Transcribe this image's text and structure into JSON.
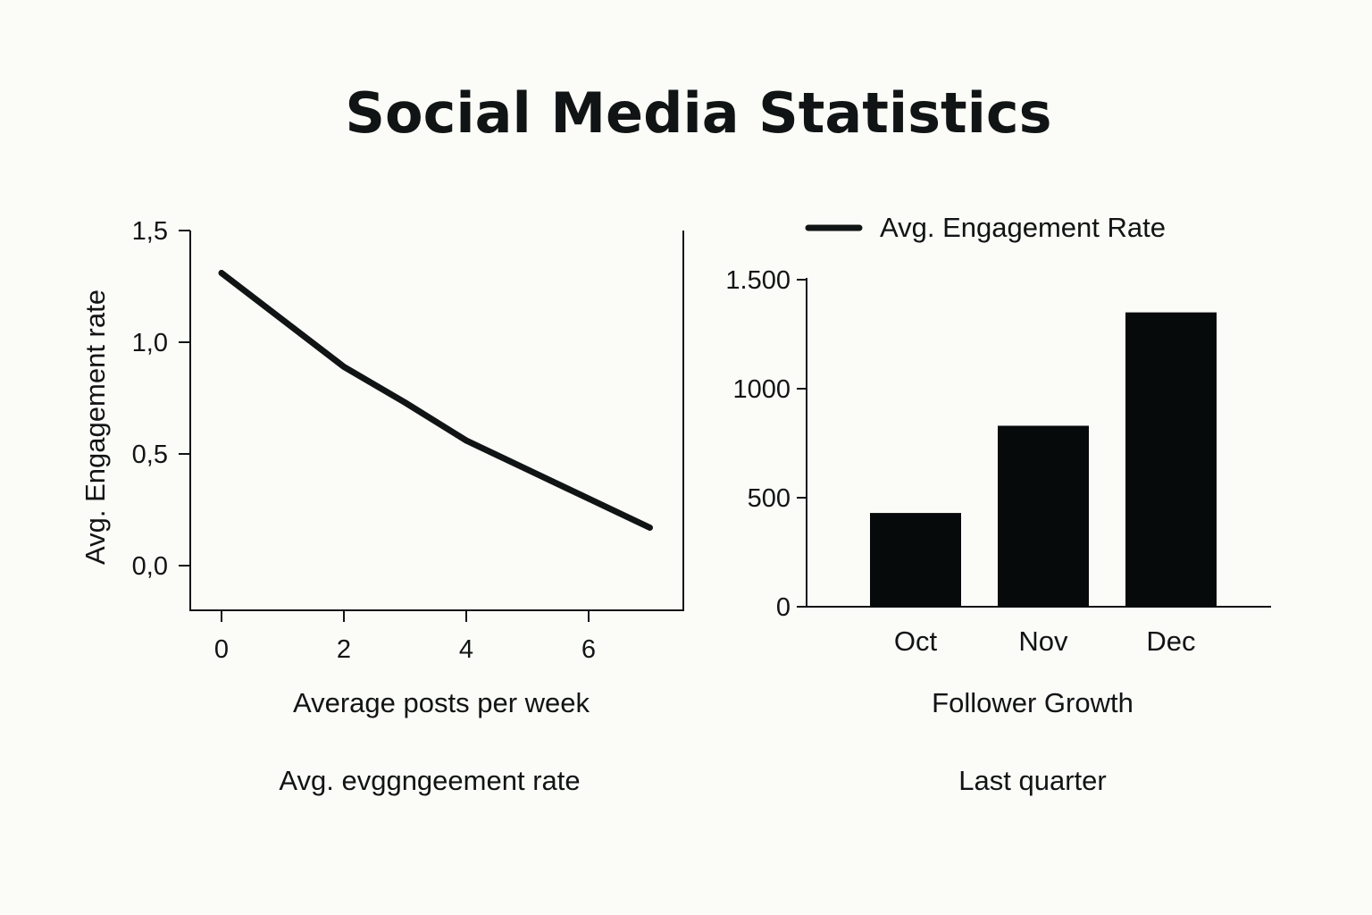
{
  "title": "Social Media Statistics",
  "colors": {
    "background": "#fbfbf8",
    "ink": "#111414",
    "bar": "#070a0a"
  },
  "chart_data": [
    {
      "type": "line",
      "title": "",
      "xlabel": "Average posts per week",
      "ylabel": "Avg. Engagement rate",
      "caption": "Avg. evggngeement rate",
      "x": [
        0,
        1,
        2,
        3,
        4,
        5,
        6,
        7
      ],
      "series": [
        {
          "name": "Avg. Engagement Rate",
          "values": [
            1.31,
            1.1,
            0.89,
            0.73,
            0.56,
            0.43,
            0.3,
            0.17
          ]
        }
      ],
      "xticks": [
        0,
        2,
        4,
        6
      ],
      "xtick_labels": [
        "0",
        "2",
        "4",
        "6"
      ],
      "yticks": [
        0,
        0.5,
        1.0,
        1.5
      ],
      "ytick_labels": [
        "0,0",
        "0,5",
        "1,0",
        "1,5"
      ],
      "xlim": [
        -0.5,
        7.5
      ],
      "ylim": [
        -0.2,
        1.5
      ],
      "grid": false
    },
    {
      "type": "bar",
      "title": "",
      "xlabel": "Follower Growth",
      "ylabel": "",
      "caption": "Last quarter",
      "legend": {
        "entries": [
          "Avg. Engagement Rate"
        ],
        "position": "top"
      },
      "categories": [
        "Oct",
        "Nov",
        "Dec"
      ],
      "values": [
        430,
        830,
        1350
      ],
      "yticks": [
        0,
        500,
        1000,
        1500
      ],
      "ytick_labels": [
        "0",
        "500",
        "1000",
        "1.500"
      ],
      "ylim": [
        0,
        1500
      ],
      "grid": false
    }
  ]
}
